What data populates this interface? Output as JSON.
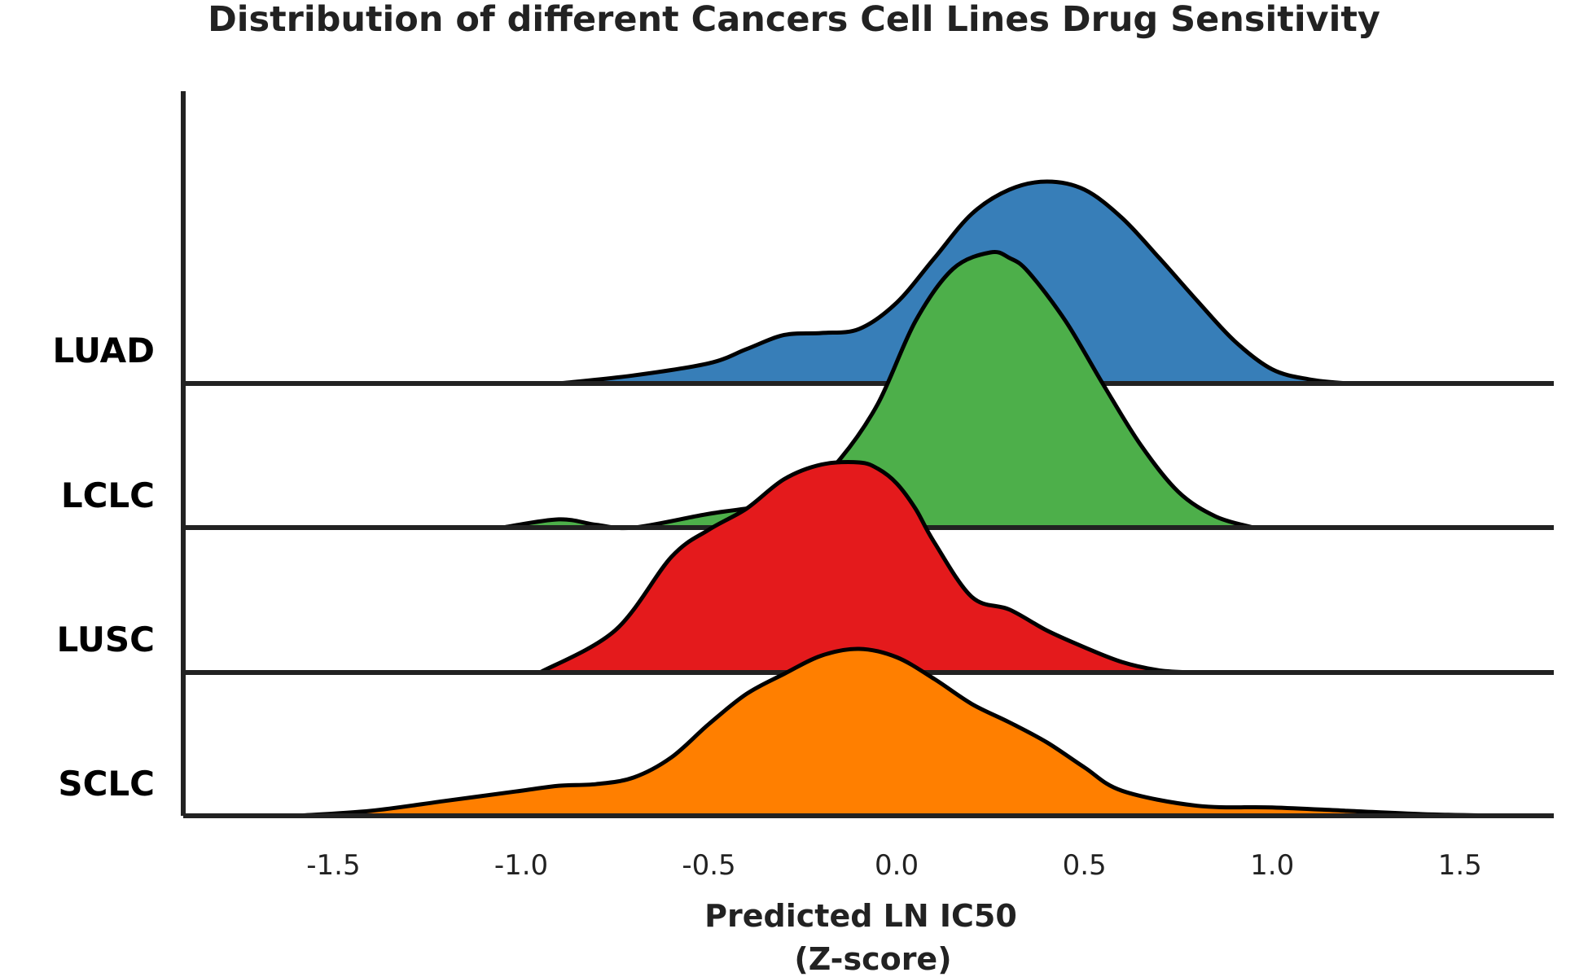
{
  "chart_data": {
    "type": "area",
    "subtype": "ridgeline",
    "title": "Distribution of different Cancers Cell Lines Drug Sensitivity",
    "xlabel_line1": "Predicted LN IC50",
    "xlabel_line2": "(Z-score)",
    "xlim": [
      -1.9,
      1.75
    ],
    "xticks": [
      -1.5,
      -1.0,
      -0.5,
      0.0,
      0.5,
      1.0,
      1.5
    ],
    "xtick_labels": [
      "-1.5",
      "-1.0",
      "-0.5",
      "0.0",
      "0.5",
      "1.0",
      "1.5"
    ],
    "grid": false,
    "series": [
      {
        "name": "LUAD",
        "color": "#377eb8",
        "x": [
          -0.9,
          -0.7,
          -0.5,
          -0.4,
          -0.3,
          -0.2,
          -0.1,
          0.0,
          0.1,
          0.2,
          0.3,
          0.4,
          0.5,
          0.6,
          0.7,
          0.8,
          0.9,
          1.0,
          1.1,
          1.2
        ],
        "density": [
          0.0,
          0.04,
          0.1,
          0.17,
          0.24,
          0.25,
          0.27,
          0.4,
          0.62,
          0.84,
          0.96,
          1.0,
          0.96,
          0.82,
          0.62,
          0.41,
          0.21,
          0.07,
          0.02,
          0.0
        ]
      },
      {
        "name": "LCLC",
        "color": "#4daf4a",
        "x": [
          -1.05,
          -0.9,
          -0.8,
          -0.7,
          -0.5,
          -0.35,
          -0.25,
          -0.15,
          -0.05,
          0.05,
          0.15,
          0.25,
          0.3,
          0.35,
          0.45,
          0.55,
          0.65,
          0.75,
          0.85,
          0.95
        ],
        "density": [
          0.0,
          0.03,
          0.01,
          0.0,
          0.05,
          0.08,
          0.12,
          0.25,
          0.45,
          0.75,
          0.94,
          1.0,
          0.98,
          0.93,
          0.75,
          0.52,
          0.3,
          0.13,
          0.04,
          0.0
        ]
      },
      {
        "name": "LUSC",
        "color": "#e41a1c",
        "x": [
          -0.95,
          -0.75,
          -0.6,
          -0.5,
          -0.4,
          -0.3,
          -0.2,
          -0.1,
          -0.05,
          0.0,
          0.05,
          0.1,
          0.2,
          0.3,
          0.4,
          0.5,
          0.6,
          0.7,
          0.8
        ],
        "density": [
          0.0,
          0.2,
          0.55,
          0.68,
          0.78,
          0.92,
          0.99,
          1.0,
          0.97,
          0.9,
          0.78,
          0.62,
          0.36,
          0.3,
          0.2,
          0.12,
          0.05,
          0.01,
          0.0
        ]
      },
      {
        "name": "SCLC",
        "color": "#ff7f00",
        "x": [
          -1.6,
          -1.4,
          -1.2,
          -1.0,
          -0.9,
          -0.8,
          -0.7,
          -0.6,
          -0.5,
          -0.4,
          -0.3,
          -0.2,
          -0.1,
          0.0,
          0.1,
          0.2,
          0.3,
          0.4,
          0.5,
          0.6,
          0.8,
          1.0,
          1.2,
          1.4,
          1.6
        ],
        "density": [
          0.0,
          0.03,
          0.09,
          0.15,
          0.18,
          0.19,
          0.23,
          0.35,
          0.55,
          0.73,
          0.85,
          0.96,
          1.0,
          0.95,
          0.82,
          0.67,
          0.56,
          0.44,
          0.29,
          0.15,
          0.06,
          0.05,
          0.03,
          0.01,
          0.0
        ]
      }
    ]
  }
}
